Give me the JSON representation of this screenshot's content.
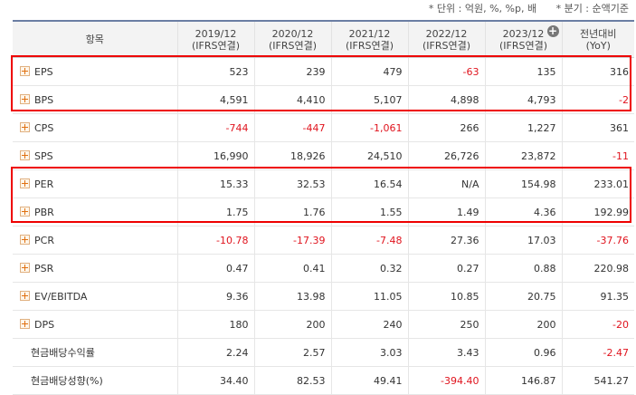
{
  "notes": {
    "unit": "* 단위 : 억원, %, %p, 배",
    "period": "* 분기 : 순액기준"
  },
  "header": {
    "item": "항목",
    "columns": [
      {
        "year": "2019/12",
        "basis": "(IFRS연결)"
      },
      {
        "year": "2020/12",
        "basis": "(IFRS연결)"
      },
      {
        "year": "2021/12",
        "basis": "(IFRS연결)"
      },
      {
        "year": "2022/12",
        "basis": "(IFRS연결)"
      },
      {
        "year": "2023/12",
        "basis": "(IFRS연결)"
      },
      {
        "year": "전년대비",
        "basis": "(YoY)"
      }
    ],
    "expand_icon": "circle-plus-icon"
  },
  "colors": {
    "negative": "#e0141e",
    "highlight": "#ee0000",
    "header_bg": "#f3f3f3"
  },
  "rows": [
    {
      "label": "EPS",
      "expandable": true,
      "values": [
        "523",
        "239",
        "479",
        "-63",
        "135",
        "316"
      ]
    },
    {
      "label": "BPS",
      "expandable": true,
      "values": [
        "4,591",
        "4,410",
        "5,107",
        "4,898",
        "4,793",
        "-2"
      ]
    },
    {
      "label": "CPS",
      "expandable": true,
      "values": [
        "-744",
        "-447",
        "-1,061",
        "266",
        "1,227",
        "361"
      ]
    },
    {
      "label": "SPS",
      "expandable": true,
      "values": [
        "16,990",
        "18,926",
        "24,510",
        "26,726",
        "23,872",
        "-11"
      ]
    },
    {
      "label": "PER",
      "expandable": true,
      "values": [
        "15.33",
        "32.53",
        "16.54",
        "N/A",
        "154.98",
        "233.01"
      ]
    },
    {
      "label": "PBR",
      "expandable": true,
      "values": [
        "1.75",
        "1.76",
        "1.55",
        "1.49",
        "4.36",
        "192.99"
      ]
    },
    {
      "label": "PCR",
      "expandable": true,
      "values": [
        "-10.78",
        "-17.39",
        "-7.48",
        "27.36",
        "17.03",
        "-37.76"
      ]
    },
    {
      "label": "PSR",
      "expandable": true,
      "values": [
        "0.47",
        "0.41",
        "0.32",
        "0.27",
        "0.88",
        "220.98"
      ]
    },
    {
      "label": "EV/EBITDA",
      "expandable": true,
      "values": [
        "9.36",
        "13.98",
        "11.05",
        "10.85",
        "20.75",
        "91.35"
      ]
    },
    {
      "label": "DPS",
      "expandable": true,
      "values": [
        "180",
        "200",
        "240",
        "250",
        "200",
        "-20"
      ]
    },
    {
      "label": "현금배당수익률",
      "expandable": false,
      "values": [
        "2.24",
        "2.57",
        "3.03",
        "3.43",
        "0.96",
        "-2.47"
      ]
    },
    {
      "label": "현금배당성향(%)",
      "expandable": false,
      "values": [
        "34.40",
        "82.53",
        "49.41",
        "-394.40",
        "146.87",
        "541.27"
      ]
    }
  ]
}
